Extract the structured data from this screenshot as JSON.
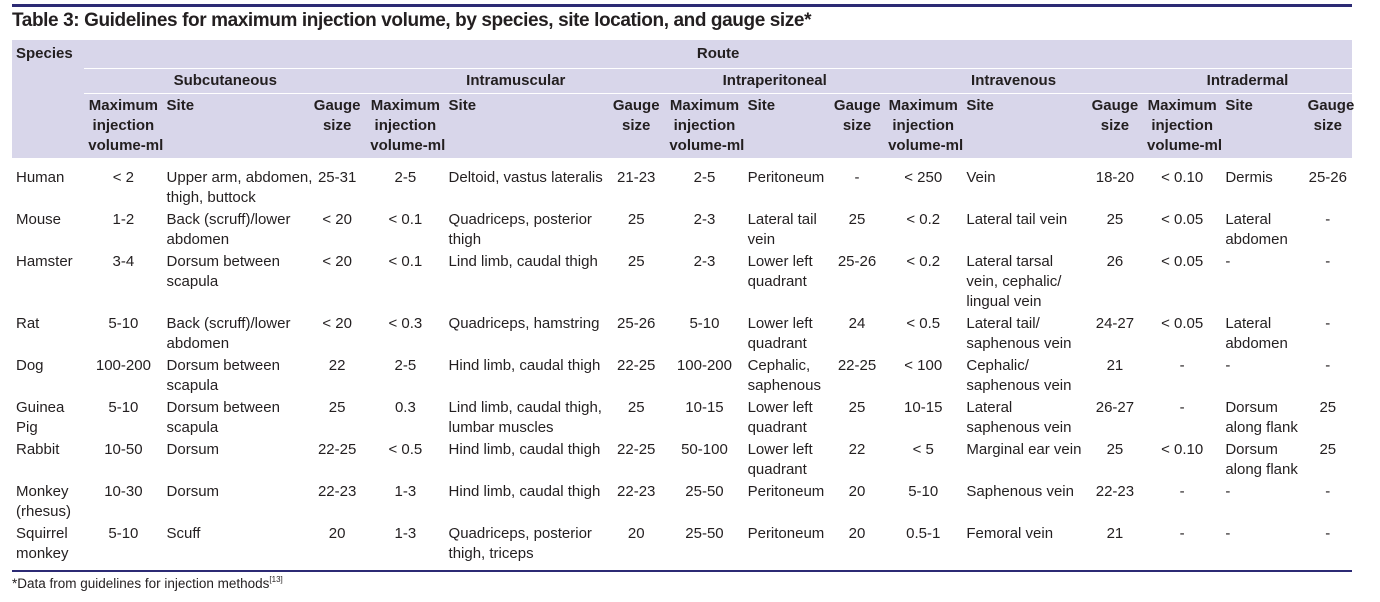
{
  "title": "Table 3: Guidelines for maximum injection volume, by species, site location, and gauge size*",
  "header": {
    "species": "Species",
    "route": "Route",
    "routes": [
      "Subcutaneous",
      "Intramuscular",
      "Intraperitoneal",
      "Intravenous",
      "Intradermal"
    ],
    "col_max_1": "Maximum",
    "col_max_2": "injection",
    "col_max_3": "volume-ml",
    "col_site": "Site",
    "col_gauge_1": "Gauge",
    "col_gauge_2": "size"
  },
  "rows": [
    {
      "species": [
        "Human"
      ],
      "sc": [
        "< 2",
        [
          "Upper arm, abdomen,",
          "thigh, buttock"
        ],
        "25-31"
      ],
      "im": [
        "2-5",
        [
          "Deltoid, vastus lateralis"
        ],
        "21-23"
      ],
      "ip": [
        "2-5",
        [
          "Peritoneum"
        ],
        "-"
      ],
      "iv": [
        "< 250",
        [
          "Vein"
        ],
        "18-20"
      ],
      "id": [
        "< 0.10",
        [
          "Dermis"
        ],
        "25-26"
      ]
    },
    {
      "species": [
        "Mouse"
      ],
      "sc": [
        "1-2",
        [
          "Back (scruff)/lower",
          "abdomen"
        ],
        "< 20"
      ],
      "im": [
        "< 0.1",
        [
          "Quadriceps, posterior",
          "thigh"
        ],
        "25"
      ],
      "ip": [
        "2-3",
        [
          "Lateral tail",
          "vein"
        ],
        "25"
      ],
      "iv": [
        "< 0.2",
        [
          "Lateral tail vein"
        ],
        "25"
      ],
      "id": [
        "< 0.05",
        [
          "Lateral",
          "abdomen"
        ],
        "-"
      ]
    },
    {
      "species": [
        "Hamster"
      ],
      "sc": [
        "3-4",
        [
          "Dorsum between",
          "scapula"
        ],
        "< 20"
      ],
      "im": [
        "< 0.1",
        [
          "Lind limb, caudal thigh"
        ],
        "25"
      ],
      "ip": [
        "2-3",
        [
          "Lower left",
          "quadrant"
        ],
        "25-26"
      ],
      "iv": [
        "< 0.2",
        [
          "Lateral tarsal",
          "vein, cephalic/",
          "lingual vein"
        ],
        "26"
      ],
      "id": [
        "< 0.05",
        [
          "-"
        ],
        "-"
      ]
    },
    {
      "species": [
        "Rat"
      ],
      "sc": [
        "5-10",
        [
          "Back (scruff)/lower",
          "abdomen"
        ],
        "< 20"
      ],
      "im": [
        "< 0.3",
        [
          "Quadriceps, hamstring"
        ],
        "25-26"
      ],
      "ip": [
        "5-10",
        [
          "Lower left",
          "quadrant"
        ],
        "24"
      ],
      "iv": [
        "< 0.5",
        [
          "Lateral tail/",
          "saphenous vein"
        ],
        "24-27"
      ],
      "id": [
        "< 0.05",
        [
          "Lateral",
          "abdomen"
        ],
        "-"
      ]
    },
    {
      "species": [
        "Dog"
      ],
      "sc": [
        "100-200",
        [
          "Dorsum between",
          "scapula"
        ],
        "22"
      ],
      "im": [
        "2-5",
        [
          "Hind limb, caudal thigh"
        ],
        "22-25"
      ],
      "ip": [
        "100-200",
        [
          "Cephalic,",
          "saphenous"
        ],
        "22-25"
      ],
      "iv": [
        "< 100",
        [
          "Cephalic/",
          "saphenous vein"
        ],
        "21"
      ],
      "id": [
        "-",
        [
          "-"
        ],
        "-"
      ]
    },
    {
      "species": [
        "Guinea",
        "Pig"
      ],
      "sc": [
        "5-10",
        [
          "Dorsum between",
          "scapula"
        ],
        "25"
      ],
      "im": [
        "0.3",
        [
          "Lind limb, caudal thigh,",
          "lumbar muscles"
        ],
        "25"
      ],
      "ip": [
        "10-15",
        [
          "Lower left",
          "quadrant"
        ],
        "25"
      ],
      "iv": [
        "10-15",
        [
          "Lateral",
          "saphenous vein"
        ],
        "26-27"
      ],
      "id": [
        "-",
        [
          "Dorsum",
          "along flank"
        ],
        "25"
      ]
    },
    {
      "species": [
        "Rabbit"
      ],
      "sc": [
        "10-50",
        [
          "Dorsum"
        ],
        "22-25"
      ],
      "im": [
        "< 0.5",
        [
          "Hind limb, caudal thigh"
        ],
        "22-25"
      ],
      "ip": [
        "50-100",
        [
          "Lower left",
          "quadrant"
        ],
        "22"
      ],
      "iv": [
        "< 5",
        [
          "Marginal ear vein"
        ],
        "25"
      ],
      "id": [
        "< 0.10",
        [
          "Dorsum",
          "along flank"
        ],
        "25"
      ]
    },
    {
      "species": [
        "Monkey",
        "(rhesus)"
      ],
      "sc": [
        "10-30",
        [
          "Dorsum"
        ],
        "22-23"
      ],
      "im": [
        "1-3",
        [
          "Hind limb, caudal thigh"
        ],
        "22-23"
      ],
      "ip": [
        "25-50",
        [
          "Peritoneum"
        ],
        "20"
      ],
      "iv": [
        "5-10",
        [
          "Saphenous vein"
        ],
        "22-23"
      ],
      "id": [
        "-",
        [
          "-"
        ],
        "-"
      ]
    },
    {
      "species": [
        "Squirrel",
        "monkey"
      ],
      "sc": [
        "5-10",
        [
          "Scuff"
        ],
        "20"
      ],
      "im": [
        "1-3",
        [
          "Quadriceps, posterior",
          "thigh, triceps"
        ],
        "20"
      ],
      "ip": [
        "25-50",
        [
          "Peritoneum"
        ],
        "20"
      ],
      "iv": [
        "0.5-1",
        [
          "Femoral vein"
        ],
        "21"
      ],
      "id": [
        "-",
        [
          "-"
        ],
        "-"
      ]
    }
  ],
  "footnote": "*Data from guidelines for injection methods",
  "footnote_ref": "[13]",
  "colors": {
    "header_bg": "#d8d6ea",
    "rule": "#2c2a74",
    "text": "#231f20"
  }
}
